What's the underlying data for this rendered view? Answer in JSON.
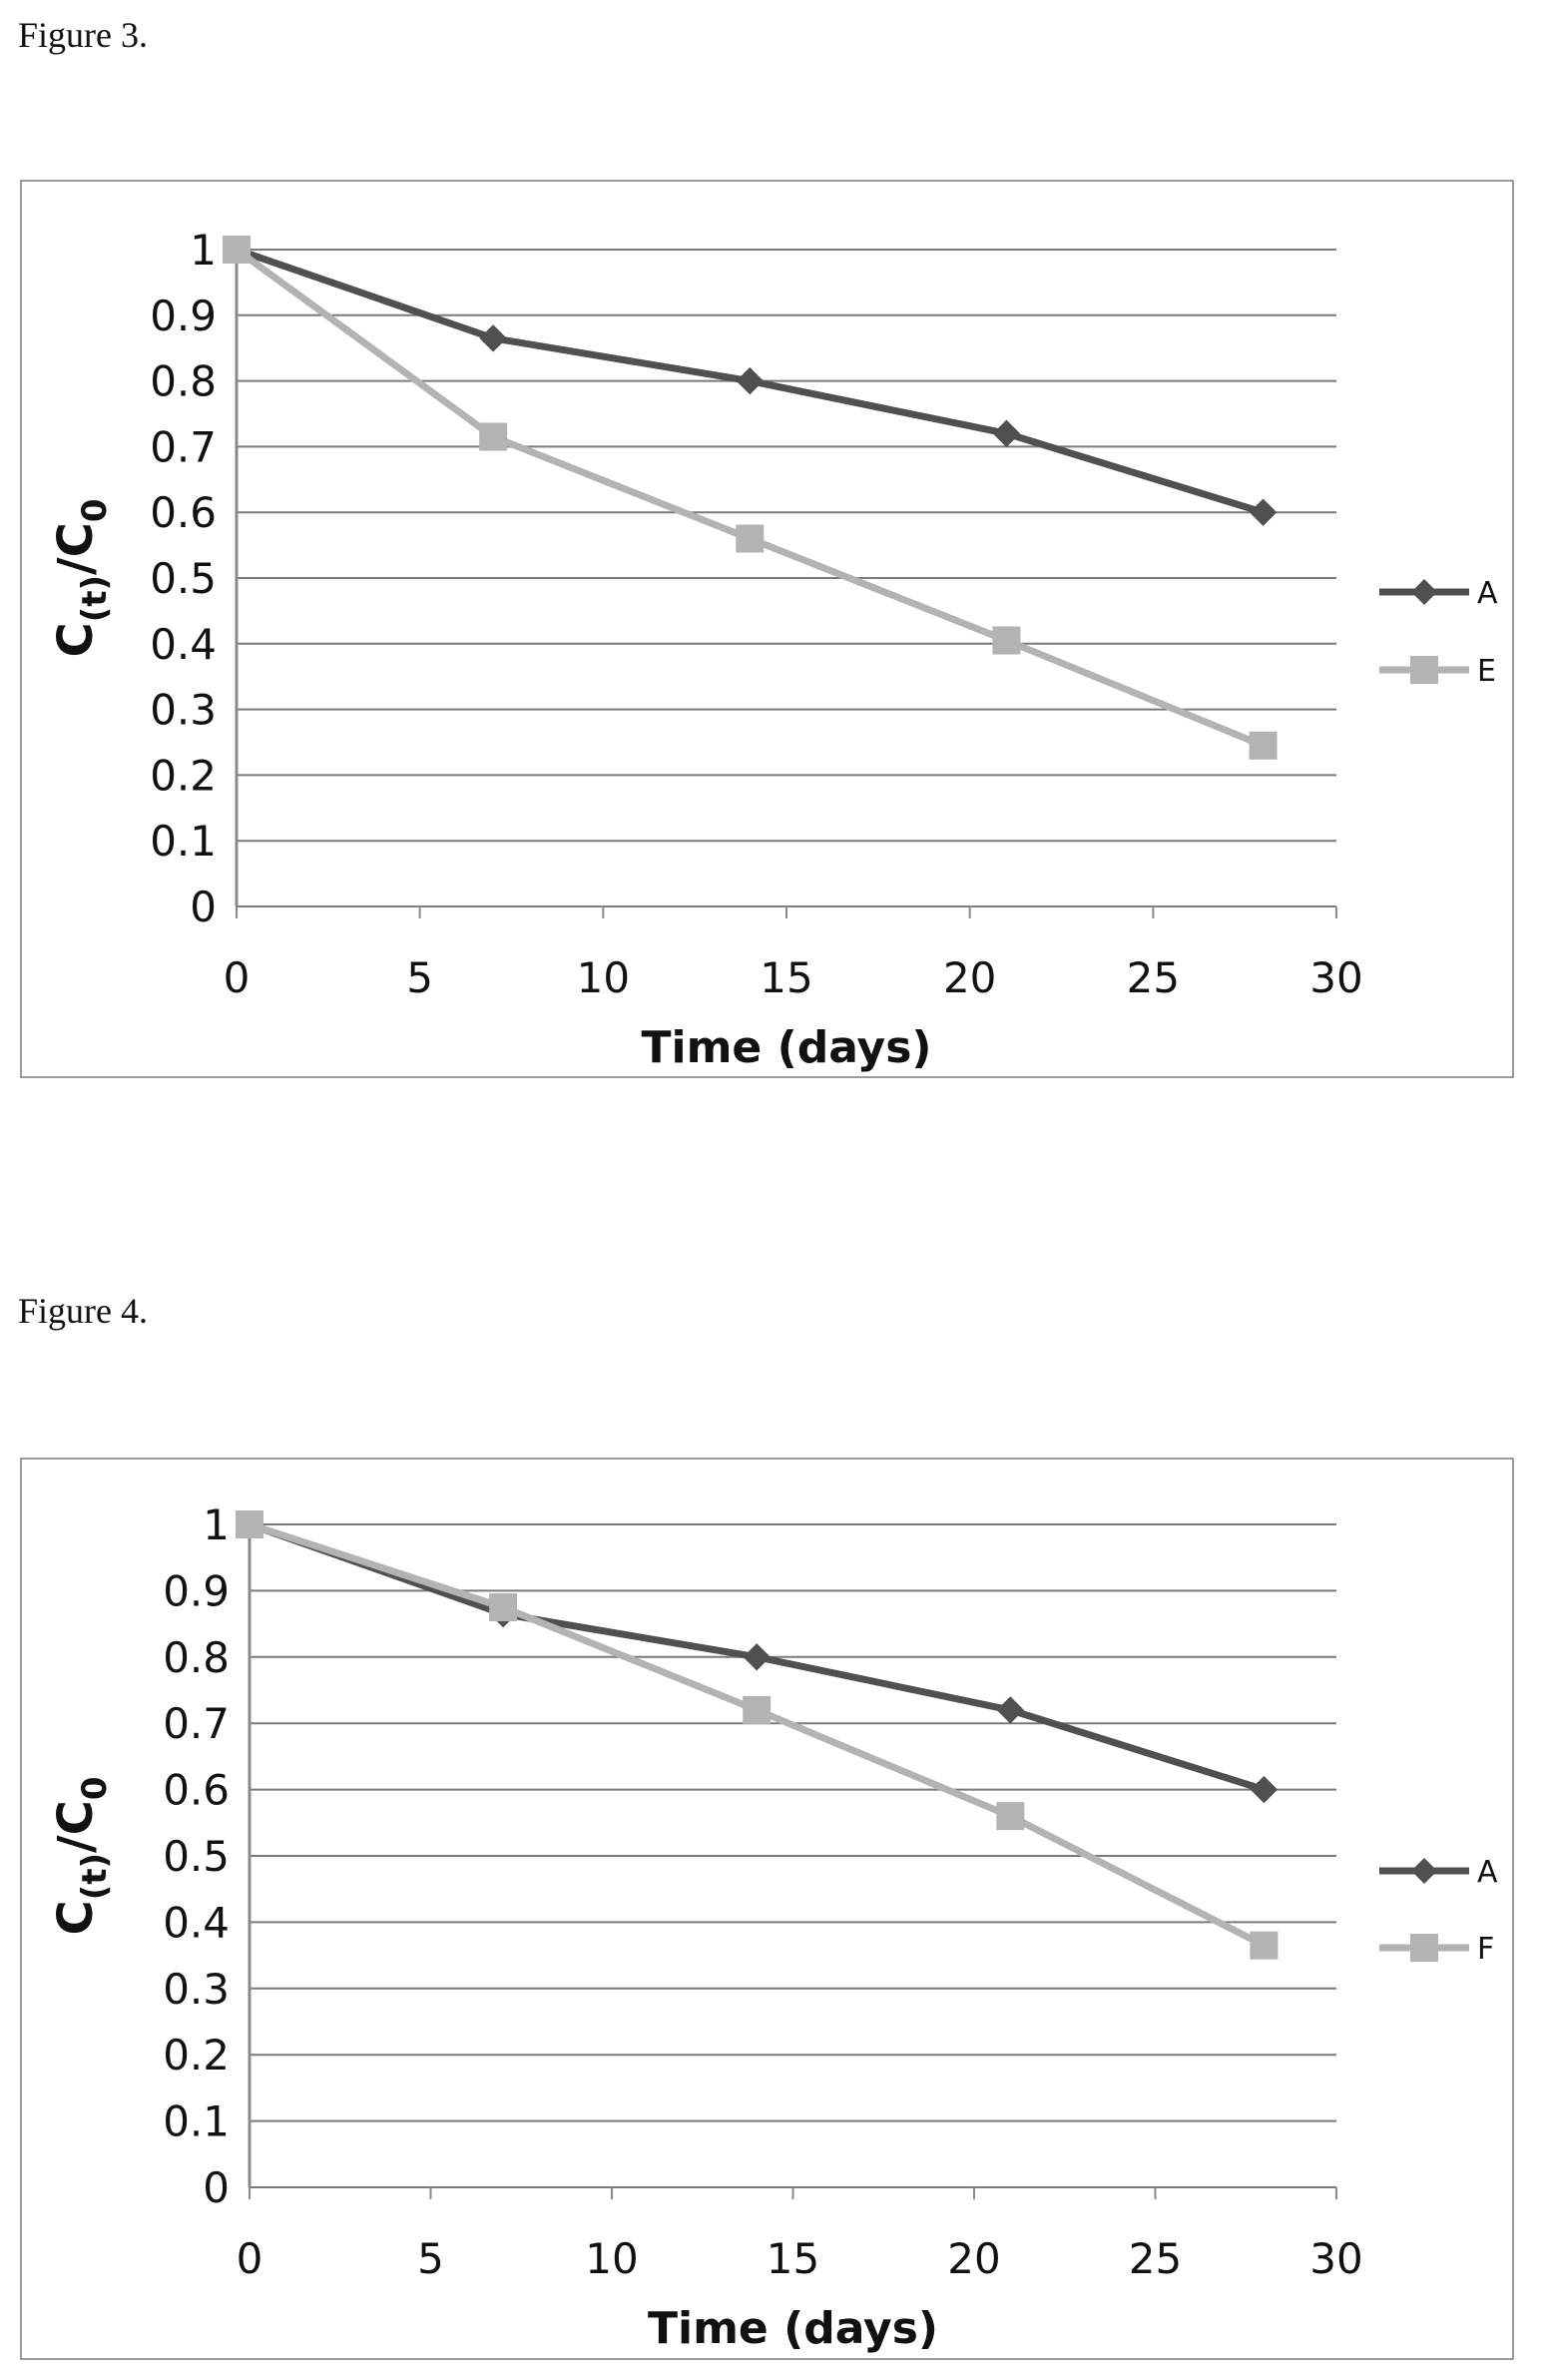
{
  "figures": [
    {
      "caption": "Figure 3."
    },
    {
      "caption": "Figure 4."
    }
  ],
  "colors": {
    "series_a": "#505050",
    "series_b": "#b3b3b3",
    "grid": "#7a7a7a",
    "axis": "#8a8a8a",
    "frame": "#9a9a9a"
  },
  "chart_data": [
    {
      "type": "line",
      "title": "",
      "xlabel": "Time (days)",
      "ylabel_main": "C",
      "ylabel_sub1": "(t)",
      "ylabel_slash": "/C",
      "ylabel_sub2": "0",
      "xlim": [
        0,
        30
      ],
      "ylim": [
        0,
        1
      ],
      "x_ticks": [
        0,
        5,
        10,
        15,
        20,
        25,
        30
      ],
      "y_ticks": [
        0,
        0.1,
        0.2,
        0.3,
        0.4,
        0.5,
        0.6,
        0.7,
        0.8,
        0.9,
        1
      ],
      "grid": true,
      "legend_position": "right",
      "series": [
        {
          "name": "A",
          "marker": "diamond",
          "color": "#505050",
          "x": [
            0,
            7,
            14,
            21,
            28
          ],
          "y": [
            1.0,
            0.865,
            0.8,
            0.72,
            0.6
          ]
        },
        {
          "name": "E",
          "marker": "square",
          "color": "#b3b3b3",
          "x": [
            0,
            7,
            14,
            21,
            28
          ],
          "y": [
            1.0,
            0.715,
            0.56,
            0.405,
            0.245
          ]
        }
      ]
    },
    {
      "type": "line",
      "title": "",
      "xlabel": "Time (days)",
      "ylabel_main": "C",
      "ylabel_sub1": "(t)",
      "ylabel_slash": "/C",
      "ylabel_sub2": "0",
      "xlim": [
        0,
        30
      ],
      "ylim": [
        0,
        1
      ],
      "x_ticks": [
        0,
        5,
        10,
        15,
        20,
        25,
        30
      ],
      "y_ticks": [
        0,
        0.1,
        0.2,
        0.3,
        0.4,
        0.5,
        0.6,
        0.7,
        0.8,
        0.9,
        1
      ],
      "grid": true,
      "legend_position": "right",
      "series": [
        {
          "name": "A",
          "marker": "diamond",
          "color": "#505050",
          "x": [
            0,
            7,
            14,
            21,
            28
          ],
          "y": [
            1.0,
            0.865,
            0.8,
            0.72,
            0.6
          ]
        },
        {
          "name": "F",
          "marker": "square",
          "color": "#b3b3b3",
          "x": [
            0,
            7,
            14,
            21,
            28
          ],
          "y": [
            1.0,
            0.875,
            0.72,
            0.56,
            0.365
          ]
        }
      ]
    }
  ]
}
